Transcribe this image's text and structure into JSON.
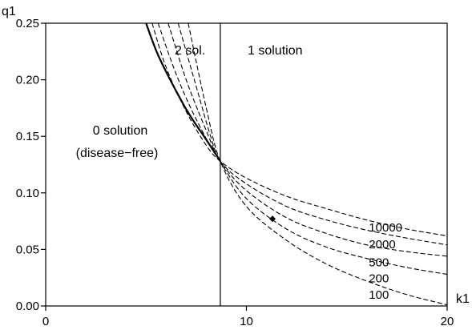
{
  "chart_data": {
    "type": "line",
    "title": "",
    "xlabel": "k1",
    "ylabel": "q1",
    "xlim": [
      0,
      20
    ],
    "ylim": [
      0,
      0.25
    ],
    "xticks": [
      "0",
      "10",
      "20"
    ],
    "yticks": [
      "0.00",
      "0.05",
      "0.10",
      "0.15",
      "0.20",
      "0.25"
    ],
    "grid": false,
    "threshold_k1": 8.7,
    "crossing_q1": 0.128,
    "annotations": {
      "zero": "0 solution",
      "zero_sub": "(disease−free)",
      "two": "2 sol.",
      "one": "1 solution"
    },
    "solid_curve": {
      "x": [
        5,
        5.5,
        6,
        6.5,
        7,
        7.5,
        8,
        8.7
      ],
      "y": [
        0.25,
        0.226,
        0.207,
        0.19,
        0.174,
        0.16,
        0.147,
        0.128
      ]
    },
    "series": [
      {
        "name": "10000",
        "x": [
          5.3,
          6,
          7,
          8,
          8.7,
          10,
          12,
          14,
          16,
          18,
          20
        ],
        "y": [
          0.25,
          0.211,
          0.172,
          0.142,
          0.128,
          0.113,
          0.097,
          0.086,
          0.076,
          0.068,
          0.062
        ]
      },
      {
        "name": "2000",
        "x": [
          5.6,
          6.5,
          7.5,
          8.7,
          10,
          12,
          14,
          16,
          18,
          20
        ],
        "y": [
          0.25,
          0.205,
          0.165,
          0.128,
          0.108,
          0.088,
          0.076,
          0.067,
          0.06,
          0.054
        ]
      },
      {
        "name": "500",
        "x": [
          6.1,
          7,
          8,
          8.7,
          10,
          12,
          14,
          16,
          18,
          20
        ],
        "y": [
          0.25,
          0.2,
          0.155,
          0.128,
          0.102,
          0.078,
          0.064,
          0.054,
          0.048,
          0.044
        ]
      },
      {
        "name": "200",
        "x": [
          6.6,
          7.5,
          8.2,
          8.7,
          10,
          12,
          14,
          16,
          18,
          20
        ],
        "y": [
          0.25,
          0.194,
          0.151,
          0.128,
          0.095,
          0.068,
          0.052,
          0.042,
          0.034,
          0.028
        ]
      },
      {
        "name": "100",
        "x": [
          7.1,
          8,
          8.7,
          10,
          12,
          14,
          16,
          18,
          20
        ],
        "y": [
          0.25,
          0.175,
          0.128,
          0.088,
          0.058,
          0.037,
          0.022,
          0.01,
          0.001
        ]
      }
    ],
    "marker_point": {
      "x": 11.3,
      "y": 0.077
    }
  }
}
